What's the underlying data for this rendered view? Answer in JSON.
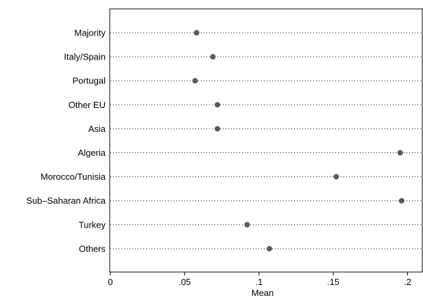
{
  "chart_data": {
    "type": "dot",
    "categories": [
      "Majority",
      "Italy/Spain",
      "Portugal",
      "Other EU",
      "Asia",
      "Algeria",
      "Morocco/Tunisia",
      "Sub–Saharan Africa",
      "Turkey",
      "Others"
    ],
    "values": [
      0.058,
      0.069,
      0.057,
      0.072,
      0.072,
      0.195,
      0.152,
      0.196,
      0.092,
      0.107
    ],
    "xlabel": "Mean",
    "xlim": [
      0,
      0.205
    ],
    "xticks": [
      0,
      0.05,
      0.1,
      0.15,
      0.2
    ],
    "xtick_labels": [
      "0",
      ".05",
      ".1",
      ".15",
      ".2"
    ],
    "marker_color": "#595959",
    "grid": false
  }
}
